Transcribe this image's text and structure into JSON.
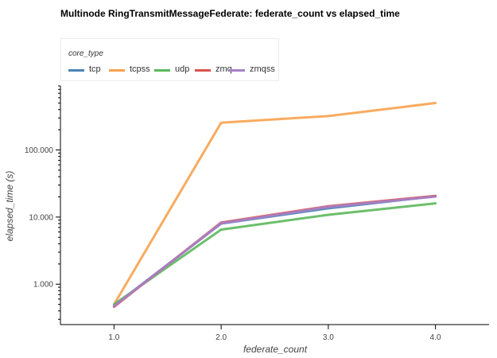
{
  "chart_data": {
    "type": "line",
    "title": "Multinode RingTransmitMessageFederate: federate_count vs elapsed_time",
    "xlabel": "federate_count",
    "ylabel": "elapsed_time (s)",
    "yscale": "log",
    "xlim": [
      0.5,
      4.5
    ],
    "ylim": [
      0.25,
      900
    ],
    "x_ticks": [
      "1.0",
      "2.0",
      "3.0",
      "4.0"
    ],
    "y_ticks": [
      {
        "value": 1,
        "label": "1.000"
      },
      {
        "value": 10,
        "label": "10.000"
      },
      {
        "value": 100,
        "label": "100.000"
      }
    ],
    "legend": {
      "title": "core_type",
      "placement": "top-left"
    },
    "grid": false,
    "x": [
      1,
      2,
      3,
      4
    ],
    "series": [
      {
        "name": "tcp",
        "color": "#4c82b6",
        "values": [
          0.48,
          8.0,
          13.5,
          20.5
        ]
      },
      {
        "name": "tcpss",
        "color": "#f7a24f",
        "values": [
          0.5,
          255,
          320,
          500
        ]
      },
      {
        "name": "udp",
        "color": "#5bb85b",
        "values": [
          0.5,
          6.5,
          10.8,
          16.0
        ]
      },
      {
        "name": "zmq",
        "color": "#d9534f",
        "values": [
          0.46,
          8.3,
          14.5,
          20.7
        ]
      },
      {
        "name": "zmqss",
        "color": "#a780c9",
        "values": [
          0.47,
          8.1,
          14.2,
          20.2
        ]
      }
    ]
  }
}
